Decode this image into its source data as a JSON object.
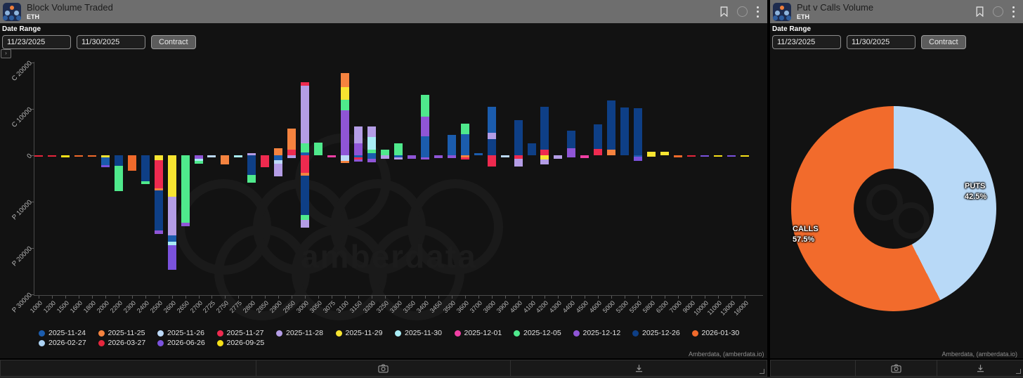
{
  "panels": [
    {
      "id": "block-volume-traded",
      "title": "Block Volume Traded",
      "subtitle": "ETH",
      "controls": {
        "date_range_label": "Date Range",
        "date_from": "11/23/2025",
        "date_to": "11/30/2025",
        "contract_button": "Contract"
      },
      "attribution": "Amberdata, (amberdata.io)"
    },
    {
      "id": "put-v-calls-volume",
      "title": "Put v Calls Volume",
      "subtitle": "ETH",
      "controls": {
        "date_range_label": "Date Range",
        "date_from": "11/23/2025",
        "date_to": "11/30/2025",
        "contract_button": "Contract"
      },
      "attribution": "Amberdata, (amberdata.io)"
    }
  ],
  "watermark_text": "amberdata",
  "icons": {
    "bookmark": "bookmark-outline",
    "info": "circle-outline",
    "menu": "kebab-vertical-dots",
    "camera": "camera-snapshot",
    "download": "download-arrow",
    "resize_corner": "corner-resize-handle",
    "zoom_reset": "chart-zoom-reset"
  },
  "chart_data": [
    {
      "type": "bar",
      "title": "Block Volume Traded",
      "stacked": true,
      "diverging": true,
      "grid": false,
      "legend_position": "bottom",
      "xlabel": "strike",
      "y_ticks": [
        "C 20000",
        "C 10000",
        "0",
        "P 10000",
        "P 20000",
        "P 30000"
      ],
      "y_tick_values": [
        20000,
        10000,
        0,
        -10000,
        -20000,
        -30000
      ],
      "ylim": [
        -30000,
        22000
      ],
      "series": [
        {
          "name": "2025-11-24",
          "color": "#1b5cad"
        },
        {
          "name": "2025-11-25",
          "color": "#f5833f"
        },
        {
          "name": "2025-11-26",
          "color": "#bcd9f7"
        },
        {
          "name": "2025-11-27",
          "color": "#ee2a4f"
        },
        {
          "name": "2025-11-28",
          "color": "#b49de6"
        },
        {
          "name": "2025-11-29",
          "color": "#f7e431"
        },
        {
          "name": "2025-11-30",
          "color": "#a8ecf5"
        },
        {
          "name": "2025-12-01",
          "color": "#f03fa4"
        },
        {
          "name": "2025-12-05",
          "color": "#4fe98c"
        },
        {
          "name": "2025-12-12",
          "color": "#8f55d6"
        },
        {
          "name": "2025-12-26",
          "color": "#0e3f86"
        },
        {
          "name": "2026-01-30",
          "color": "#f06a2b"
        },
        {
          "name": "2026-02-27",
          "color": "#aed4f5"
        },
        {
          "name": "2026-03-27",
          "color": "#e5263c"
        },
        {
          "name": "2026-06-26",
          "color": "#7a52dd"
        },
        {
          "name": "2026-09-25",
          "color": "#f6e018"
        }
      ],
      "bars": [
        {
          "k": "1000",
          "c": [],
          "p": [
            [
              "2026-03-27",
              300
            ]
          ]
        },
        {
          "k": "1200",
          "c": [],
          "p": [
            [
              "2026-03-27",
              300
            ]
          ]
        },
        {
          "k": "1500",
          "c": [],
          "p": [
            [
              "2026-09-25",
              400
            ]
          ]
        },
        {
          "k": "1600",
          "c": [],
          "p": [
            [
              "2026-01-30",
              300
            ]
          ]
        },
        {
          "k": "1800",
          "c": [],
          "p": [
            [
              "2026-01-30",
              300
            ]
          ]
        },
        {
          "k": "2000",
          "c": [],
          "p": [
            [
              "2025-11-29",
              400
            ],
            [
              "2025-11-24",
              1700
            ],
            [
              "2026-06-26",
              400
            ]
          ]
        },
        {
          "k": "2200",
          "c": [],
          "p": [
            [
              "2025-12-26",
              2300
            ],
            [
              "2025-12-05",
              5500
            ]
          ]
        },
        {
          "k": "2300",
          "c": [],
          "p": [
            [
              "2026-01-30",
              3300
            ]
          ]
        },
        {
          "k": "2400",
          "c": [],
          "p": [
            [
              "2025-12-26",
              5600
            ],
            [
              "2025-12-05",
              600
            ]
          ]
        },
        {
          "k": "2500",
          "c": [],
          "p": [
            [
              "2025-11-29",
              1000
            ],
            [
              "2025-11-27",
              6100
            ],
            [
              "2025-11-25",
              500
            ],
            [
              "2025-12-26",
              8700
            ],
            [
              "2025-12-12",
              700
            ]
          ]
        },
        {
          "k": "2600",
          "c": [],
          "p": [
            [
              "2025-11-29",
              9000
            ],
            [
              "2025-11-28",
              8300
            ],
            [
              "2025-11-24",
              1300
            ],
            [
              "2025-11-30",
              800
            ],
            [
              "2026-06-26",
              5300
            ]
          ]
        },
        {
          "k": "2650",
          "c": [],
          "p": [
            [
              "2025-12-05",
              14600
            ],
            [
              "2025-12-12",
              800
            ]
          ]
        },
        {
          "k": "2700",
          "c": [],
          "p": [
            [
              "2025-12-12",
              700
            ],
            [
              "2025-11-30",
              400
            ],
            [
              "2025-12-05",
              600
            ]
          ]
        },
        {
          "k": "2725",
          "c": [],
          "p": [
            [
              "2025-11-26",
              400
            ]
          ]
        },
        {
          "k": "2750",
          "c": [],
          "p": [
            [
              "2025-11-25",
              1900
            ]
          ]
        },
        {
          "k": "2775",
          "c": [],
          "p": [
            [
              "2025-11-30",
              400
            ]
          ]
        },
        {
          "k": "2800",
          "c": [
            [
              "2025-11-28",
              500
            ]
          ],
          "p": [
            [
              "2025-12-26",
              4300
            ],
            [
              "2025-12-05",
              1700
            ]
          ]
        },
        {
          "k": "2850",
          "c": [],
          "p": [
            [
              "2025-11-27",
              2500
            ]
          ]
        },
        {
          "k": "2900",
          "c": [
            [
              "2025-11-25",
              1500
            ]
          ],
          "p": [
            [
              "2025-11-24",
              1000
            ],
            [
              "2025-11-26",
              700
            ],
            [
              "2025-11-28",
              2800
            ]
          ]
        },
        {
          "k": "2950",
          "c": [
            [
              "2025-11-27",
              1200
            ],
            [
              "2025-11-25",
              4500
            ]
          ],
          "p": [
            [
              "2025-11-28",
              600
            ]
          ]
        },
        {
          "k": "3000",
          "c": [
            [
              "2025-11-24",
              600
            ],
            [
              "2025-12-05",
              2000
            ],
            [
              "2025-11-28",
              12400
            ],
            [
              "2025-11-27",
              800
            ]
          ],
          "p": [
            [
              "2025-11-27",
              3800
            ],
            [
              "2025-11-25",
              600
            ],
            [
              "2025-12-26",
              8500
            ],
            [
              "2025-12-05",
              1100
            ],
            [
              "2025-11-28",
              1700
            ]
          ]
        },
        {
          "k": "3050",
          "c": [
            [
              "2025-12-05",
              2800
            ]
          ],
          "p": []
        },
        {
          "k": "3075",
          "c": [],
          "p": [
            [
              "2025-12-01",
              500
            ]
          ]
        },
        {
          "k": "3100",
          "c": [
            [
              "2025-12-12",
              9700
            ],
            [
              "2025-12-05",
              2300
            ],
            [
              "2025-11-29",
              2700
            ],
            [
              "2025-11-25",
              3000
            ]
          ],
          "p": [
            [
              "2025-11-26",
              1200
            ],
            [
              "2025-11-25",
              400
            ]
          ]
        },
        {
          "k": "3150",
          "c": [
            [
              "2025-12-12",
              2600
            ],
            [
              "2025-11-28",
              3600
            ]
          ],
          "p": [
            [
              "2025-11-24",
              500
            ],
            [
              "2025-11-27",
              400
            ],
            [
              "2025-12-12",
              400
            ]
          ]
        },
        {
          "k": "3200",
          "c": [
            [
              "2025-11-24",
              500
            ],
            [
              "2025-12-05",
              800
            ],
            [
              "2025-11-30",
              2800
            ],
            [
              "2025-11-28",
              2300
            ]
          ],
          "p": [
            [
              "2025-11-24",
              700
            ],
            [
              "2025-12-12",
              700
            ]
          ]
        },
        {
          "k": "3250",
          "c": [
            [
              "2025-12-05",
              1200
            ]
          ],
          "p": [
            [
              "2025-11-28",
              700
            ]
          ]
        },
        {
          "k": "3300",
          "c": [
            [
              "2025-12-05",
              2600
            ]
          ],
          "p": [
            [
              "2025-11-24",
              500
            ],
            [
              "2025-11-28",
              400
            ]
          ]
        },
        {
          "k": "3350",
          "c": [],
          "p": [
            [
              "2025-12-12",
              700
            ]
          ]
        },
        {
          "k": "3400",
          "c": [
            [
              "2025-11-24",
              4100
            ],
            [
              "2025-12-12",
              4200
            ],
            [
              "2025-12-05",
              4700
            ]
          ],
          "p": [
            [
              "2025-11-24",
              400
            ],
            [
              "2025-12-12",
              500
            ]
          ]
        },
        {
          "k": "3450",
          "c": [],
          "p": [
            [
              "2025-12-12",
              600
            ]
          ]
        },
        {
          "k": "3500",
          "c": [
            [
              "2025-11-24",
              4400
            ]
          ],
          "p": [
            [
              "2025-12-12",
              600
            ]
          ]
        },
        {
          "k": "3600",
          "c": [
            [
              "2025-11-24",
              4500
            ],
            [
              "2025-12-05",
              2300
            ]
          ],
          "p": [
            [
              "2025-11-25",
              500
            ],
            [
              "2025-11-27",
              400
            ]
          ]
        },
        {
          "k": "3700",
          "c": [
            [
              "2025-11-24",
              500
            ]
          ],
          "p": []
        },
        {
          "k": "3800",
          "c": [
            [
              "2025-12-26",
              3500
            ],
            [
              "2025-11-28",
              1400
            ],
            [
              "2025-11-24",
              5600
            ]
          ],
          "p": [
            [
              "2025-11-27",
              2400
            ]
          ]
        },
        {
          "k": "3900",
          "c": [],
          "p": [
            [
              "2025-11-26",
              400
            ]
          ]
        },
        {
          "k": "4000",
          "c": [
            [
              "2025-12-26",
              7500
            ]
          ],
          "p": [
            [
              "2025-11-27",
              700
            ],
            [
              "2025-11-28",
              1700
            ]
          ]
        },
        {
          "k": "4100",
          "c": [
            [
              "2025-12-26",
              2600
            ]
          ],
          "p": []
        },
        {
          "k": "4200",
          "c": [
            [
              "2025-11-27",
              1200
            ],
            [
              "2025-12-26",
              9300
            ]
          ],
          "p": [
            [
              "2025-11-29",
              900
            ],
            [
              "2025-11-28",
              1100
            ]
          ]
        },
        {
          "k": "4300",
          "c": [],
          "p": [
            [
              "2025-11-28",
              700
            ]
          ]
        },
        {
          "k": "4400",
          "c": [
            [
              "2025-12-12",
              1500
            ],
            [
              "2025-12-26",
              3800
            ]
          ],
          "p": [
            [
              "2025-12-12",
              400
            ]
          ]
        },
        {
          "k": "4500",
          "c": [],
          "p": [
            [
              "2025-12-01",
              600
            ]
          ]
        },
        {
          "k": "4600",
          "c": [
            [
              "2025-11-27",
              1400
            ],
            [
              "2025-12-26",
              5300
            ]
          ],
          "p": []
        },
        {
          "k": "5000",
          "c": [
            [
              "2025-11-25",
              1200
            ],
            [
              "2025-12-26",
              10600
            ]
          ],
          "p": []
        },
        {
          "k": "5200",
          "c": [
            [
              "2025-12-26",
              10300
            ]
          ],
          "p": []
        },
        {
          "k": "5500",
          "c": [
            [
              "2025-12-26",
              10200
            ]
          ],
          "p": [
            [
              "2025-11-24",
              300
            ],
            [
              "2026-06-26",
              900
            ]
          ]
        },
        {
          "k": "5800",
          "c": [
            [
              "2025-11-29",
              800
            ]
          ],
          "p": [
            [
              "2025-11-29",
              300
            ]
          ]
        },
        {
          "k": "6200",
          "c": [
            [
              "2025-11-29",
              800
            ]
          ],
          "p": []
        },
        {
          "k": "7000",
          "c": [],
          "p": [
            [
              "2026-01-30",
              400
            ]
          ]
        },
        {
          "k": "9000",
          "c": [],
          "p": [
            [
              "2026-03-27",
              300
            ]
          ]
        },
        {
          "k": "10000",
          "c": [],
          "p": [
            [
              "2026-06-26",
              300
            ]
          ]
        },
        {
          "k": "11000",
          "c": [],
          "p": [
            [
              "2026-09-25",
              300
            ]
          ]
        },
        {
          "k": "13000",
          "c": [],
          "p": [
            [
              "2026-06-26",
              300
            ]
          ]
        },
        {
          "k": "16000",
          "c": [],
          "p": [
            [
              "2026-09-25",
              300
            ]
          ]
        }
      ]
    },
    {
      "type": "pie",
      "donut": true,
      "title": "Put v Calls Volume",
      "start_angle_deg": 0,
      "direction": "clockwise",
      "slices": [
        {
          "label": "CALLS",
          "pct": 57.5,
          "pct_label": "57.5%",
          "color": "#f26b2c"
        },
        {
          "label": "PUTS",
          "pct": 42.5,
          "pct_label": "42.5%",
          "color": "#b8d9f7"
        }
      ]
    }
  ]
}
